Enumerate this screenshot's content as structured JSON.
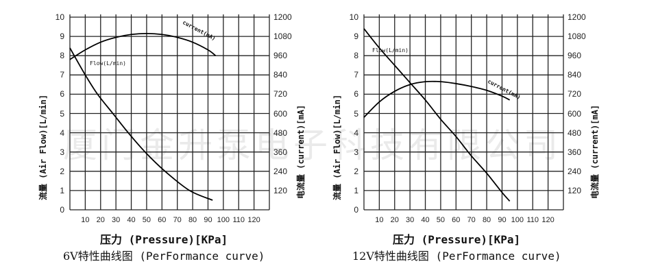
{
  "watermark": "厦门金升泵电子科技有限公司",
  "charts": [
    {
      "title_prefix": "6V",
      "title_suffix": "特性曲线图 (PerFormance curve)",
      "xlabel": "压力 (Pressure)[KPa]",
      "ylabel": "流量 (Air Flow)[L/min]",
      "y2label": "电流量 (current)[mA]",
      "flow_label": "Flow(L/min)",
      "current_label": "current(mA)"
    },
    {
      "title_prefix": "12V",
      "title_suffix": "特性曲线图 (PerFormance curve)",
      "xlabel": "压力 (Pressure)[KPa]",
      "ylabel": "流量 (Air Flow)[L/min]",
      "y2label": "电流量 (current)[mA]",
      "flow_label": "Flow(L/min)",
      "current_label": "current(mA)"
    }
  ],
  "chart_data": [
    {
      "type": "line",
      "title": "6V特性曲线图 (PerFormance curve)",
      "xlabel": "压力 (Pressure)[KPa]",
      "ylabel": "流量 (Air Flow)[L/min]",
      "y2label": "电流量 (current)[mA]",
      "xlim": [
        0,
        130
      ],
      "ylim": [
        0,
        10
      ],
      "y2lim": [
        0,
        1200
      ],
      "xticks": [
        10,
        20,
        30,
        40,
        50,
        60,
        70,
        80,
        90,
        100,
        110,
        120
      ],
      "yticks": [
        0,
        1,
        2,
        3,
        4,
        5,
        6,
        7,
        8,
        9,
        10
      ],
      "y2ticks": [
        120,
        240,
        360,
        480,
        600,
        720,
        840,
        960,
        1080,
        1200
      ],
      "grid": true,
      "series": [
        {
          "name": "Flow(L/min)",
          "axis": "left",
          "x": [
            0,
            10,
            18,
            28,
            38,
            49,
            62,
            78,
            93
          ],
          "values": [
            8.4,
            7.0,
            6.0,
            5.0,
            4.0,
            3.0,
            2.0,
            1.0,
            0.5
          ]
        },
        {
          "name": "current(mA)",
          "axis": "right",
          "x": [
            0,
            10,
            20,
            30,
            40,
            50,
            60,
            70,
            80,
            90,
            95
          ],
          "values": [
            936,
            996,
            1044,
            1074,
            1092,
            1098,
            1092,
            1074,
            1044,
            996,
            960
          ]
        }
      ]
    },
    {
      "type": "line",
      "title": "12V特性曲线图 (PerFormance curve)",
      "xlabel": "压力 (Pressure)[KPa]",
      "ylabel": "流量 (Air Flow)[L/min]",
      "y2label": "电流量 (current)[mA]",
      "xlim": [
        0,
        130
      ],
      "ylim": [
        0,
        10
      ],
      "y2lim": [
        0,
        1200
      ],
      "xticks": [
        10,
        20,
        30,
        40,
        50,
        60,
        70,
        80,
        90,
        100,
        110,
        120
      ],
      "yticks": [
        0,
        1,
        2,
        3,
        4,
        5,
        6,
        7,
        8,
        9,
        10
      ],
      "y2ticks": [
        120,
        240,
        360,
        480,
        600,
        720,
        840,
        960,
        1080,
        1200
      ],
      "grid": true,
      "series": [
        {
          "name": "Flow(L/min)",
          "axis": "left",
          "x": [
            0,
            10,
            20,
            30,
            40,
            50,
            60,
            70,
            80,
            90,
            95
          ],
          "values": [
            9.4,
            8.4,
            7.5,
            6.6,
            5.7,
            4.7,
            3.8,
            2.8,
            1.9,
            0.9,
            0.45
          ]
        },
        {
          "name": "current(mA)",
          "axis": "right",
          "x": [
            0,
            10,
            20,
            30,
            40,
            50,
            60,
            70,
            80,
            90,
            95
          ],
          "values": [
            576,
            672,
            738,
            780,
            798,
            798,
            786,
            768,
            744,
            708,
            684
          ]
        }
      ]
    }
  ]
}
